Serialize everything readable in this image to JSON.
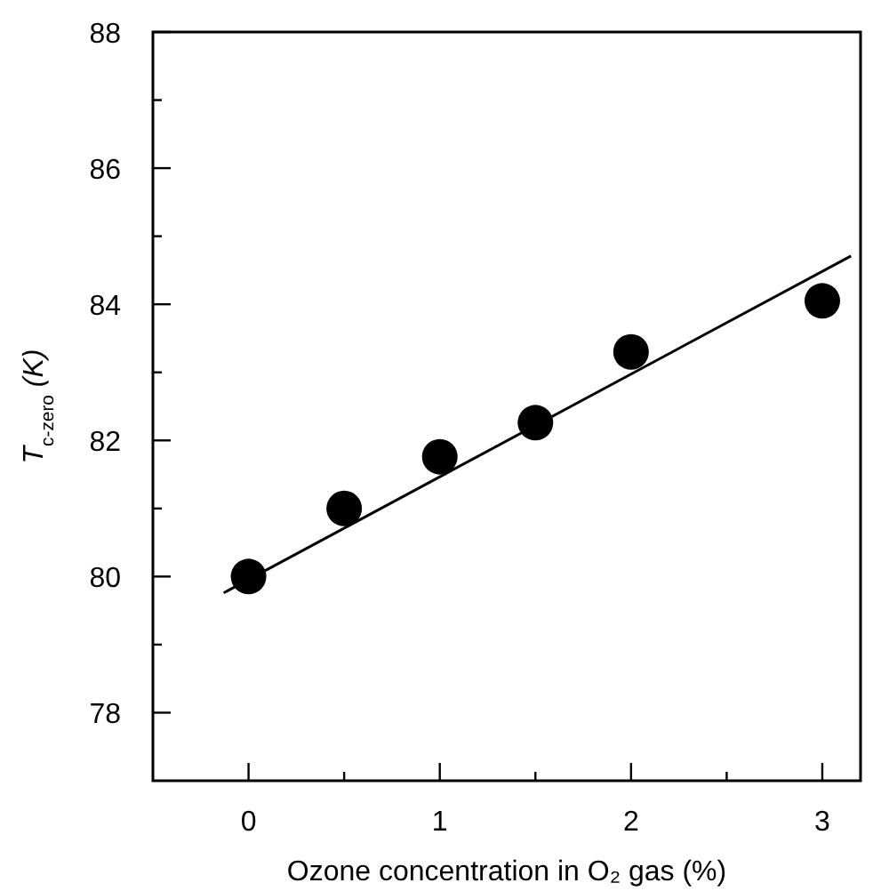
{
  "chart_data": {
    "type": "scatter",
    "xlabel": "Ozone concentration in O₂ gas (%)",
    "ylabel": "T$_{c-zero}$ (K)",
    "xlim": [
      -0.5,
      3.2
    ],
    "ylim": [
      77,
      88
    ],
    "xticks": [
      0,
      {
        "value": 0.5,
        "label": null
      },
      1,
      {
        "value": 1.5,
        "label": null
      },
      2,
      {
        "value": 2.5,
        "label": null
      },
      3
    ],
    "yticks": [
      78,
      {
        "value": 79,
        "label": null
      },
      80,
      {
        "value": 81,
        "label": null
      },
      82,
      {
        "value": 83,
        "label": null
      },
      84,
      {
        "value": 85,
        "label": null
      },
      86,
      {
        "value": 87,
        "label": null
      },
      88
    ],
    "grid": false,
    "marker": "circle",
    "series": [
      {
        "color": "#000000",
        "x": [
          0,
          0.5,
          1,
          1.5,
          2,
          3
        ],
        "values": [
          80,
          81,
          81.76,
          82.26,
          83.3,
          84.05
        ]
      },
      {
        "type": "line",
        "color": "#000000",
        "line_style": "solid",
        "marker": "none",
        "x": [
          -0.13,
          3.15
        ],
        "values": [
          79.76,
          84.71
        ]
      }
    ]
  }
}
